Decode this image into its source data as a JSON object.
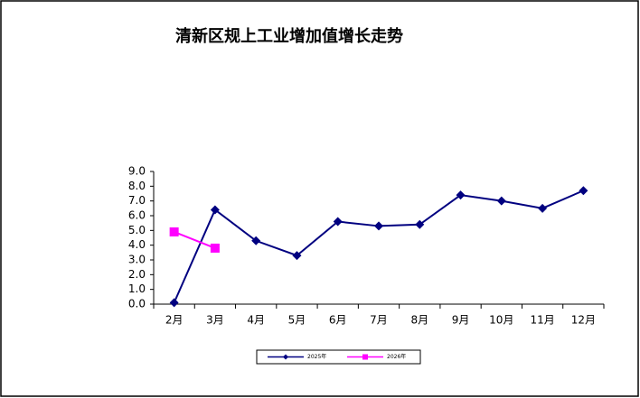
{
  "chart_data": {
    "type": "line",
    "title": "清新区规上工业增加值增长走势",
    "categories": [
      "2月",
      "3月",
      "4月",
      "5月",
      "6月",
      "7月",
      "8月",
      "9月",
      "10月",
      "11月",
      "12月"
    ],
    "series": [
      {
        "name": "2025年",
        "color": "#000080",
        "marker": "diamond",
        "values": [
          0.1,
          6.4,
          4.3,
          3.3,
          5.6,
          5.3,
          5.4,
          7.4,
          7.0,
          6.5,
          7.7
        ]
      },
      {
        "name": "2026年",
        "color": "#ff00ff",
        "marker": "square",
        "values": [
          4.9,
          3.8,
          null,
          null,
          null,
          null,
          null,
          null,
          null,
          null,
          null
        ]
      }
    ],
    "ylim": [
      0,
      9
    ],
    "yticks": [
      {
        "value": 0,
        "label": "0.0"
      },
      {
        "value": 1,
        "label": "1.0"
      },
      {
        "value": 2,
        "label": "2.0"
      },
      {
        "value": 3,
        "label": "3.0"
      },
      {
        "value": 4,
        "label": "4.0"
      },
      {
        "value": 5,
        "label": "5.0"
      },
      {
        "value": 6,
        "label": "6.0"
      },
      {
        "value": 7,
        "label": "7.0"
      },
      {
        "value": 8,
        "label": "8.0"
      },
      {
        "value": 9,
        "label": "9.0"
      }
    ],
    "grid": false,
    "legend": "bottom"
  }
}
